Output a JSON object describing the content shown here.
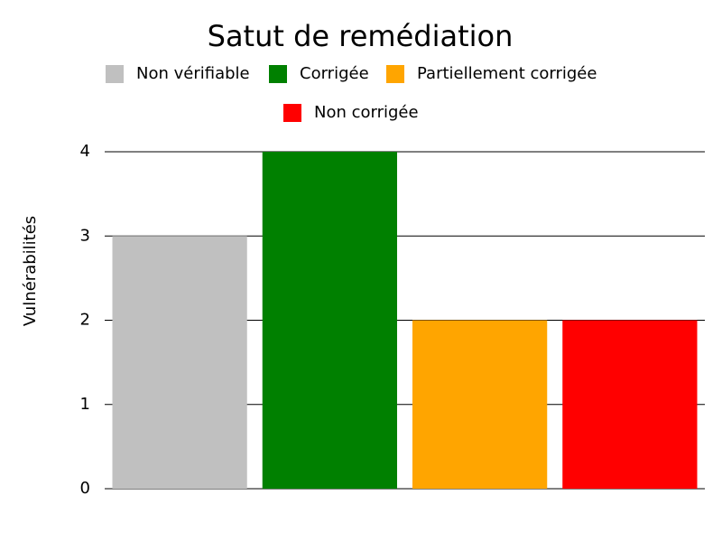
{
  "chart_data": {
    "type": "bar",
    "title": "Satut de remédiation",
    "y_label": "Vulnérabilités",
    "series": [
      {
        "name": "Non vérifiable",
        "color": "#c0c0c0",
        "values": [
          3
        ]
      },
      {
        "name": "Corrigée",
        "color": "#008000",
        "values": [
          4
        ]
      },
      {
        "name": "Partiellement corrigée",
        "color": "#ffa500",
        "values": [
          2
        ]
      },
      {
        "name": "Non corrigée",
        "color": "#ff0000",
        "values": [
          2
        ]
      }
    ],
    "ylim": [
      0,
      4
    ],
    "yticks": [
      0,
      1,
      2,
      3,
      4
    ],
    "grid": true
  }
}
